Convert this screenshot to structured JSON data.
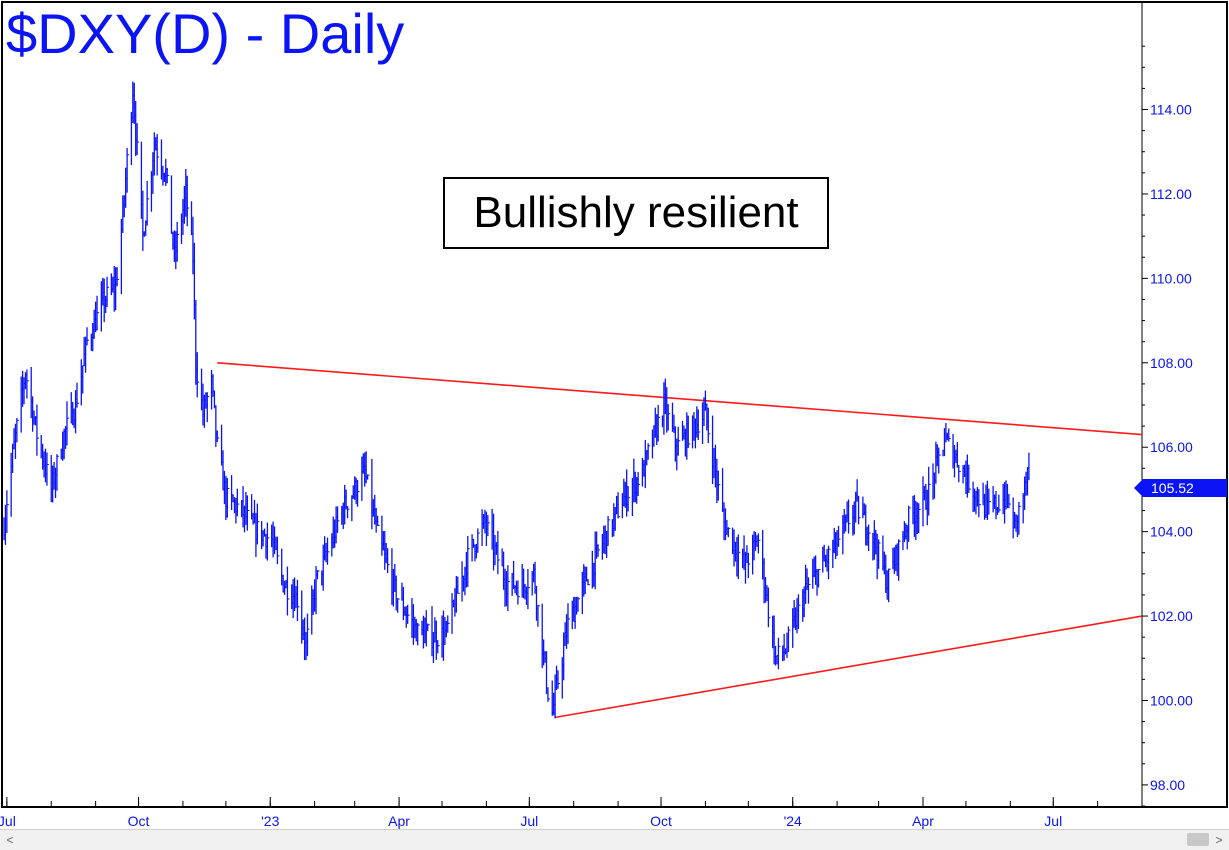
{
  "chart_data": {
    "type": "line",
    "title": "$DXY(D) - Daily",
    "annotation": "Bullishly resilient",
    "xlabel": "",
    "ylabel": "",
    "x_tick_labels": [
      "Jul",
      "Oct",
      "'23",
      "Apr",
      "Jul",
      "Oct",
      "'24",
      "Apr",
      "Jul"
    ],
    "x_tick_dates": [
      "2022-07-01",
      "2022-10-01",
      "2023-01-01",
      "2023-04-01",
      "2023-07-01",
      "2023-10-01",
      "2024-01-01",
      "2024-04-01",
      "2024-07-01"
    ],
    "y_tick_labels": [
      "98.00",
      "100.00",
      "102.00",
      "104.00",
      "106.00",
      "108.00",
      "110.00",
      "112.00",
      "114.00"
    ],
    "ylim": [
      97.5,
      116.5
    ],
    "xlim": [
      "2022-06-29",
      "2024-09-01"
    ],
    "y_axis_position": "right",
    "grid": false,
    "last_price_label": "105.52",
    "series": [
      {
        "color": "#0a14f5",
        "style": "daily-bars",
        "x": [
          "2022-06-29",
          "2022-07-05",
          "2022-07-14",
          "2022-07-22",
          "2022-08-01",
          "2022-08-10",
          "2022-08-18",
          "2022-08-26",
          "2022-09-07",
          "2022-09-15",
          "2022-09-20",
          "2022-09-27",
          "2022-10-04",
          "2022-10-12",
          "2022-10-20",
          "2022-10-26",
          "2022-11-03",
          "2022-11-08",
          "2022-11-10",
          "2022-11-15",
          "2022-11-21",
          "2022-11-25",
          "2022-12-01",
          "2022-12-12",
          "2022-12-20",
          "2023-01-02",
          "2023-01-10",
          "2023-01-20",
          "2023-01-26",
          "2023-02-02",
          "2023-02-10",
          "2023-02-20",
          "2023-03-01",
          "2023-03-08",
          "2023-03-17",
          "2023-03-30",
          "2023-04-14",
          "2023-04-26",
          "2023-05-04",
          "2023-05-20",
          "2023-05-31",
          "2023-06-15",
          "2023-06-26",
          "2023-07-04",
          "2023-07-14",
          "2023-07-17",
          "2023-07-28",
          "2023-08-10",
          "2023-08-22",
          "2023-09-05",
          "2023-09-18",
          "2023-10-03",
          "2023-10-12",
          "2023-10-24",
          "2023-11-01",
          "2023-11-14",
          "2023-11-28",
          "2023-12-08",
          "2023-12-20",
          "2023-12-27",
          "2024-01-10",
          "2024-01-24",
          "2024-02-02",
          "2024-02-14",
          "2024-02-26",
          "2024-03-07",
          "2024-03-22",
          "2024-04-04",
          "2024-04-16",
          "2024-04-25",
          "2024-05-06",
          "2024-05-16",
          "2024-05-29",
          "2024-06-04",
          "2024-06-11",
          "2024-06-14"
        ],
        "values": [
          104.2,
          105.8,
          107.8,
          106.3,
          105.0,
          106.3,
          107.0,
          108.5,
          109.5,
          109.8,
          111.5,
          114.5,
          111.0,
          113.2,
          112.5,
          110.5,
          112.0,
          110.5,
          108.0,
          106.8,
          107.5,
          106.0,
          104.8,
          104.5,
          104.1,
          103.8,
          102.8,
          102.4,
          101.3,
          102.8,
          103.5,
          104.5,
          105.0,
          105.4,
          103.9,
          102.5,
          101.6,
          101.5,
          101.6,
          103.5,
          104.2,
          102.8,
          102.7,
          103.0,
          100.2,
          99.7,
          101.8,
          102.9,
          103.8,
          104.8,
          105.4,
          107.0,
          106.0,
          106.5,
          106.8,
          104.2,
          103.2,
          103.8,
          101.0,
          101.2,
          102.6,
          103.3,
          103.8,
          104.6,
          103.9,
          102.8,
          104.3,
          104.8,
          106.2,
          105.7,
          105.0,
          104.5,
          104.8,
          104.1,
          105.0,
          105.52
        ]
      }
    ],
    "trendlines": [
      {
        "name": "",
        "color": "#ff1a1a",
        "from": {
          "x": "2022-11-25",
          "y": 108.0
        },
        "to": {
          "x": "2024-09-01",
          "y": 106.3
        }
      },
      {
        "name": "",
        "color": "#ff1a1a",
        "from": {
          "x": "2023-07-19",
          "y": 99.6
        },
        "to": {
          "x": "2024-09-01",
          "y": 102.0
        }
      }
    ]
  },
  "scrollbar": {
    "left_arrow": "<",
    "right_arrow": ">"
  }
}
